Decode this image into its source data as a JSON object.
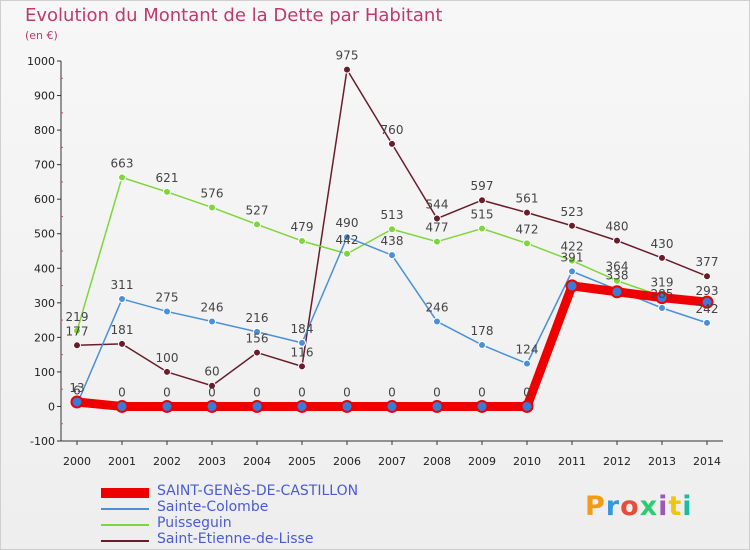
{
  "chart_data": {
    "type": "line",
    "title": "Evolution du Montant de la Dette par Habitant",
    "subtitle": "(en €)",
    "x": [
      "2000",
      "2001",
      "2002",
      "2003",
      "2004",
      "2005",
      "2006",
      "2007",
      "2008",
      "2009",
      "2010",
      "2011",
      "2012",
      "2013",
      "2014"
    ],
    "ylim": [
      -100,
      1000
    ],
    "yticks": [
      -100,
      0,
      100,
      200,
      300,
      400,
      500,
      600,
      700,
      800,
      900,
      1000
    ],
    "grid": false,
    "legend_position": "bottom-left",
    "series": [
      {
        "name": "SAINT-GENèS-DE-CASTILLON",
        "color": "#ee0000",
        "point_color": "#3a7bd5",
        "values": [
          13,
          0,
          0,
          0,
          0,
          0,
          0,
          0,
          0,
          0,
          0,
          349,
          332,
          315,
          302
        ],
        "labels": [
          "13",
          "0",
          "0",
          "0",
          "0",
          "0",
          "0",
          "0",
          "0",
          "0",
          "0",
          "",
          "",
          "",
          ""
        ]
      },
      {
        "name": "Sainte-Colombe",
        "color": "#4a90d9",
        "values": [
          6,
          311,
          275,
          246,
          216,
          184,
          490,
          438,
          246,
          178,
          124,
          391,
          338,
          285,
          242
        ],
        "labels": [
          "6",
          "311",
          "275",
          "246",
          "216",
          "184",
          "490",
          "438",
          "246",
          "178",
          "124",
          "391",
          "338",
          "285",
          "242"
        ]
      },
      {
        "name": "Puisseguin",
        "color": "#7dd63a",
        "values": [
          219,
          663,
          621,
          576,
          527,
          479,
          442,
          513,
          477,
          515,
          472,
          422,
          364,
          319,
          293
        ],
        "labels": [
          "219",
          "663",
          "621",
          "576",
          "527",
          "479",
          "442",
          "513",
          "477",
          "515",
          "472",
          "422",
          "364",
          "319",
          "293"
        ]
      },
      {
        "name": "Saint-Etienne-de-Lisse",
        "color": "#6b1c2a",
        "values": [
          177,
          181,
          100,
          60,
          156,
          116,
          975,
          760,
          544,
          597,
          561,
          523,
          480,
          430,
          377
        ],
        "labels": [
          "177",
          "181",
          "100",
          "60",
          "156",
          "116",
          "975",
          "760",
          "544",
          "597",
          "561",
          "523",
          "480",
          "430",
          "377"
        ]
      }
    ]
  },
  "logo": {
    "letters": [
      "P",
      "r",
      "o",
      "x",
      "i",
      "t",
      "i"
    ],
    "colors": [
      "#f39c12",
      "#3498db",
      "#e74c3c",
      "#2ecc71",
      "#9b59b6",
      "#f1c40f",
      "#1abc9c"
    ]
  }
}
